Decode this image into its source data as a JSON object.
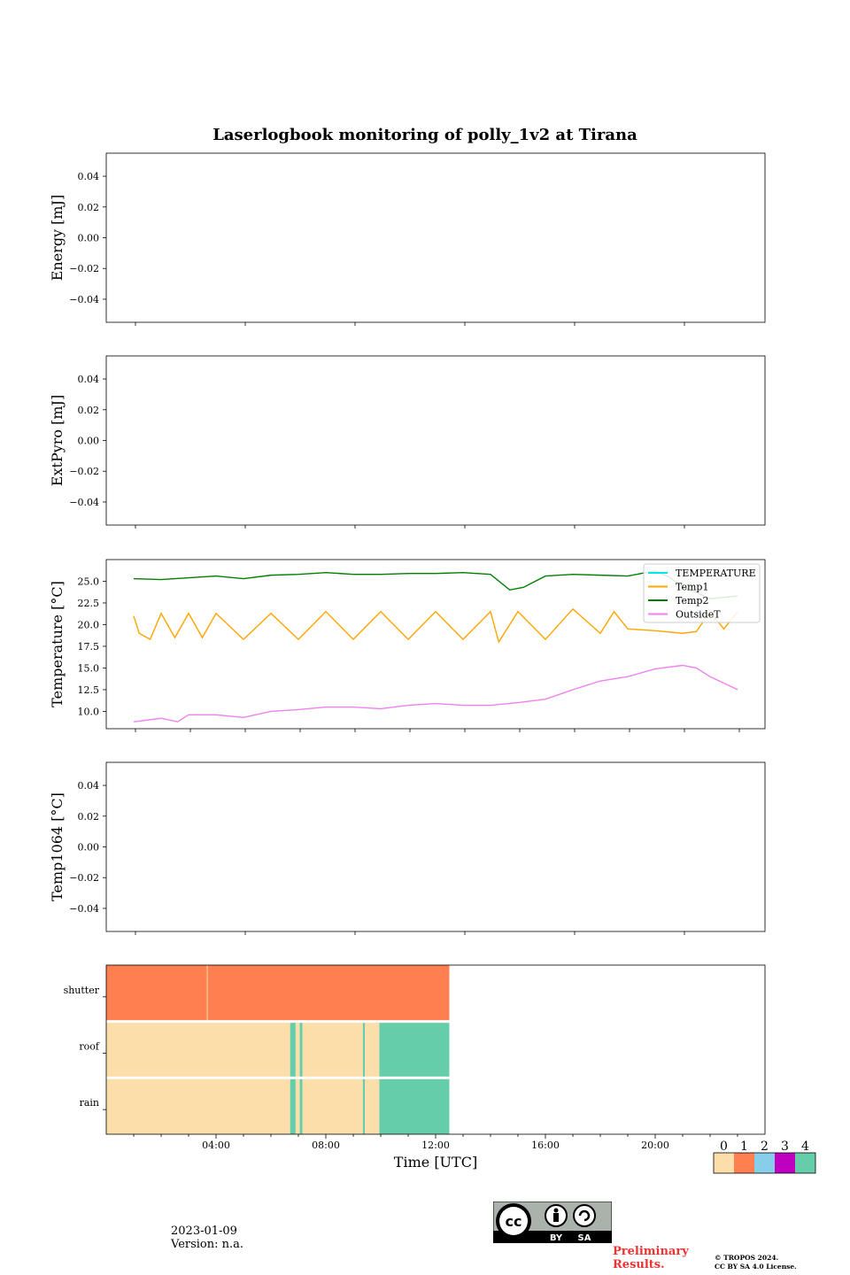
{
  "title": "Laserlogbook monitoring of polly_1v2 at Tirana",
  "footer": {
    "date": "2023-01-09",
    "version": "Version: n.a.",
    "preliminary": "Preliminary\nResults.",
    "copyright_line1": "© TROPOS 2024.",
    "copyright_line2": "CC BY SA 4.0 License.",
    "license_badge": {
      "cc": "cc",
      "by": "BY",
      "sa": "SA"
    }
  },
  "colors": {
    "TEMPERATURE": "#00e5ee",
    "Temp1": "#ffa500",
    "Temp2": "#008000",
    "OutsideT": "#ee82ee",
    "status": [
      "#fcdeab",
      "#ff7f50",
      "#87ceeb",
      "#c000c0",
      "#66cdaa"
    ]
  },
  "chart_data": [
    {
      "type": "line",
      "id": "energy",
      "title": "",
      "ylabel": "Energy [mJ]",
      "ylim": [
        -0.055,
        0.055
      ],
      "yticks": [
        0.04,
        0.02,
        0.0,
        -0.02,
        -0.04
      ],
      "ytick_labels": [
        "0.04",
        "0.02",
        "0.00",
        "−0.02",
        "−0.04"
      ],
      "series": []
    },
    {
      "type": "line",
      "id": "extpyro",
      "title": "",
      "ylabel": "ExtPyro [mJ]",
      "ylim": [
        -0.055,
        0.055
      ],
      "yticks": [
        0.04,
        0.02,
        0.0,
        -0.02,
        -0.04
      ],
      "ytick_labels": [
        "0.04",
        "0.02",
        "0.00",
        "−0.02",
        "−0.04"
      ],
      "series": []
    },
    {
      "type": "line",
      "id": "temperature",
      "title": "",
      "ylabel": "Temperature [°C]",
      "ylim": [
        8.0,
        27.5
      ],
      "yticks": [
        25.0,
        22.5,
        20.0,
        17.5,
        15.0,
        12.5,
        10.0
      ],
      "ytick_labels": [
        "25.0",
        "22.5",
        "20.0",
        "17.5",
        "15.0",
        "12.5",
        "10.0"
      ],
      "x_unit": "hours UTC",
      "legend": "top-right",
      "series": [
        {
          "name": "TEMPERATURE",
          "x": [],
          "y": []
        },
        {
          "name": "Temp1",
          "x": [
            1,
            1.2,
            1.6,
            2,
            2.5,
            3,
            3.5,
            4,
            5,
            6,
            7,
            8,
            9,
            10,
            11,
            12,
            13,
            14,
            14.3,
            15,
            16,
            17,
            18,
            18.5,
            19,
            20,
            21,
            21.5,
            22,
            22.5,
            23
          ],
          "y": [
            21.0,
            19.0,
            18.3,
            21.3,
            18.5,
            21.3,
            18.5,
            21.3,
            18.3,
            21.3,
            18.3,
            21.5,
            18.3,
            21.5,
            18.3,
            21.5,
            18.3,
            21.5,
            18.0,
            21.5,
            18.3,
            21.8,
            19.0,
            21.5,
            19.5,
            19.3,
            19.0,
            19.2,
            21.5,
            19.5,
            21.5
          ]
        },
        {
          "name": "Temp2",
          "x": [
            1,
            2,
            3,
            4,
            5,
            6,
            7,
            8,
            9,
            10,
            11,
            12,
            13,
            14,
            14.7,
            15.2,
            16,
            17,
            18,
            19,
            20,
            20.5,
            21,
            22,
            23
          ],
          "y": [
            25.3,
            25.2,
            25.4,
            25.6,
            25.3,
            25.7,
            25.8,
            26.0,
            25.8,
            25.8,
            25.9,
            25.9,
            26.0,
            25.8,
            24.0,
            24.3,
            25.6,
            25.8,
            25.7,
            25.6,
            26.2,
            25.5,
            24.4,
            23.0,
            23.3
          ]
        },
        {
          "name": "OutsideT",
          "x": [
            1,
            2,
            2.6,
            3,
            4,
            5,
            6,
            7,
            8,
            9,
            10,
            11,
            12,
            13,
            14,
            15,
            16,
            17,
            18,
            19,
            20,
            21,
            21.5,
            22,
            23
          ],
          "y": [
            8.8,
            9.2,
            8.8,
            9.6,
            9.6,
            9.3,
            10.0,
            10.2,
            10.5,
            10.5,
            10.3,
            10.7,
            10.9,
            10.7,
            10.7,
            11.0,
            11.4,
            12.5,
            13.5,
            14.0,
            14.9,
            15.3,
            15.0,
            14.0,
            12.5
          ]
        }
      ]
    },
    {
      "type": "line",
      "id": "temp1064",
      "title": "",
      "ylabel": "Temp1064 [°C]",
      "ylim": [
        -0.055,
        0.055
      ],
      "yticks": [
        0.04,
        0.02,
        0.0,
        -0.02,
        -0.04
      ],
      "ytick_labels": [
        "0.04",
        "0.02",
        "0.00",
        "−0.02",
        "−0.04"
      ],
      "series": []
    },
    {
      "type": "heatmap",
      "id": "status",
      "title": "",
      "xlabel": "Time [UTC]",
      "xlim_hours": [
        0,
        24
      ],
      "xtick_labels": [
        "04:00",
        "08:00",
        "12:00",
        "16:00",
        "20:00"
      ],
      "rows": [
        "shutter",
        "roof",
        "rain"
      ],
      "segments": {
        "shutter": [
          {
            "from": 0.0,
            "to": 12.5,
            "value": 1
          }
        ],
        "roof": [
          {
            "from": 0.0,
            "to": 6.7,
            "value": 0
          },
          {
            "from": 6.7,
            "to": 6.9,
            "value": 4
          },
          {
            "from": 6.9,
            "to": 7.05,
            "value": 0
          },
          {
            "from": 7.05,
            "to": 7.15,
            "value": 4
          },
          {
            "from": 7.15,
            "to": 9.35,
            "value": 0
          },
          {
            "from": 9.35,
            "to": 9.42,
            "value": 4
          },
          {
            "from": 9.42,
            "to": 9.95,
            "value": 0
          },
          {
            "from": 9.95,
            "to": 12.5,
            "value": 4
          }
        ],
        "rain": [
          {
            "from": 0.0,
            "to": 6.7,
            "value": 0
          },
          {
            "from": 6.7,
            "to": 6.9,
            "value": 4
          },
          {
            "from": 6.9,
            "to": 7.05,
            "value": 0
          },
          {
            "from": 7.05,
            "to": 7.15,
            "value": 4
          },
          {
            "from": 7.15,
            "to": 9.35,
            "value": 0
          },
          {
            "from": 9.35,
            "to": 9.42,
            "value": 4
          },
          {
            "from": 9.42,
            "to": 9.95,
            "value": 0
          },
          {
            "from": 9.95,
            "to": 12.5,
            "value": 4
          }
        ]
      },
      "colorbar": {
        "labels": [
          "0",
          "1",
          "2",
          "3",
          "4"
        ]
      }
    }
  ]
}
